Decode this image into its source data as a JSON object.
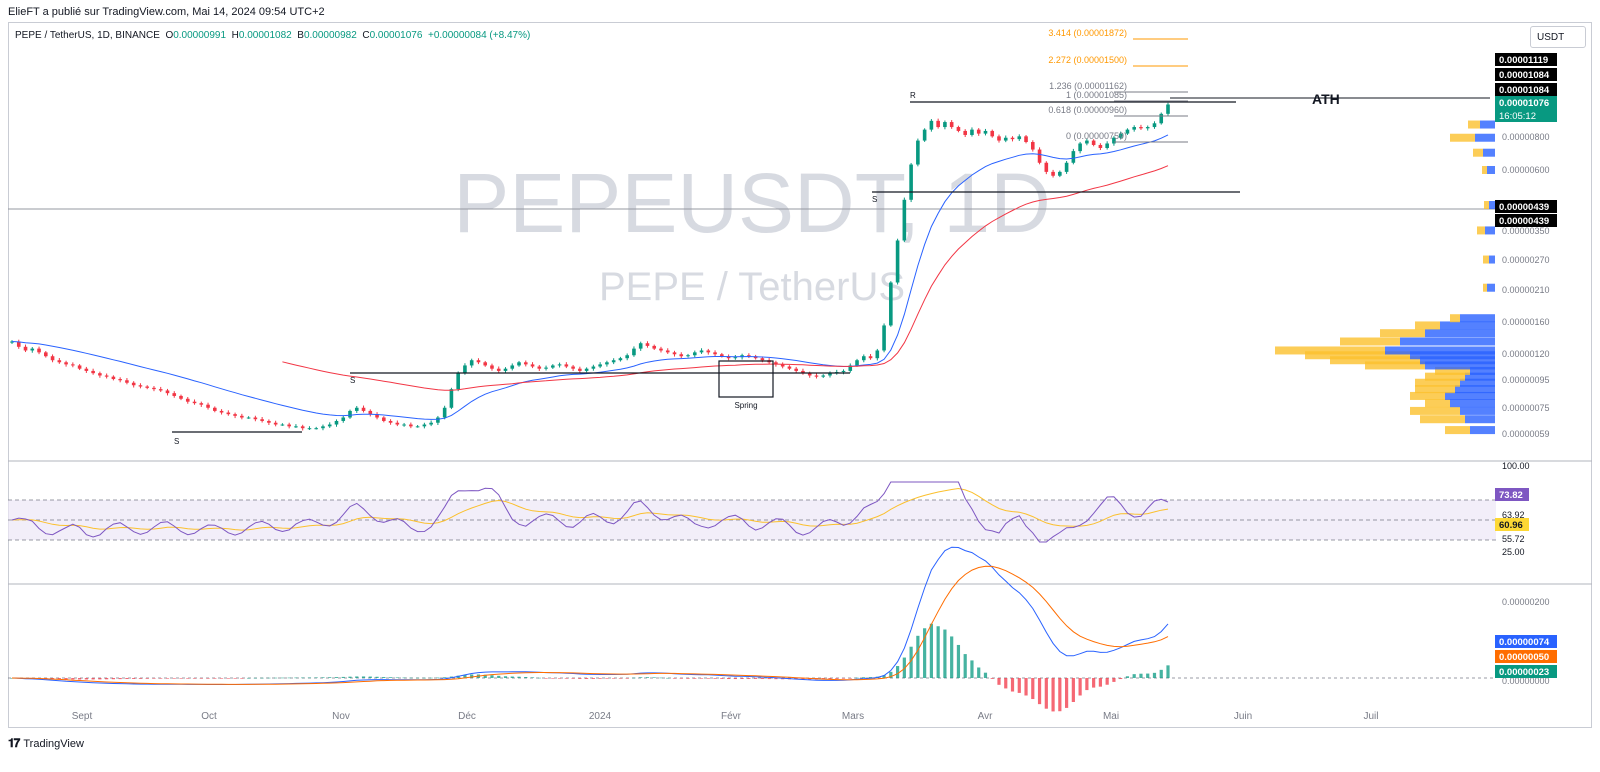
{
  "header": {
    "credit": "ElieFT a publié sur TradingView.com, Mai 14, 2024 09:54 UTC+2",
    "symbol": "PEPE / TetherUS, 1D, BINANCE",
    "o_label": "O",
    "o_value": "0.00000991",
    "h_label": "H",
    "h_value": "0.00001082",
    "b_label": "B",
    "b_value": "0.00000982",
    "c_label": "C",
    "c_value": "0.00001076",
    "change": "+0.00000084 (+8.47%)",
    "unit": "USDT"
  },
  "watermark": {
    "ticker": "PEPEUSDT, 1D",
    "name": "PEPE / TetherUS"
  },
  "footer": {
    "brand": "TradingView"
  },
  "colors": {
    "up": "#089981",
    "down": "#f23645",
    "ema_fast": "#2962ff",
    "ema_slow": "#f23645",
    "rsi": "#7e57c2",
    "rsi_ma": "#fbc02d",
    "macd": "#2962ff",
    "signal": "#ff6d00",
    "vp_up": "#2962ff",
    "vp_dn": "#fbc02d"
  },
  "chart_data": [
    {
      "type": "candlestick",
      "title": "PEPEUSDT, 1D",
      "x_labels": [
        "Sept",
        "Oct",
        "Nov",
        "Déc",
        "2024",
        "Févr",
        "Mars",
        "Avr",
        "Mai",
        "Juin",
        "Juil"
      ],
      "y_ticks": [
        "0.00000059",
        "0.00000075",
        "0.00000095",
        "0.00000120",
        "0.00000160",
        "0.00000210",
        "0.00000270",
        "0.00000350",
        "0.00000600",
        "0.00000800"
      ],
      "price_labels": [
        {
          "value": "0.00001119",
          "style": "black"
        },
        {
          "value": "0.00001084",
          "style": "black"
        },
        {
          "value": "0.00001084",
          "style": "black"
        },
        {
          "value": "0.00001076",
          "style": "green",
          "sub": "16:05:12"
        },
        {
          "value": "0.00000439",
          "style": "black"
        },
        {
          "value": "0.00000439",
          "style": "black"
        }
      ],
      "fib_levels": [
        {
          "label": "3.414 (0.00001872)",
          "color": "#ff9800"
        },
        {
          "label": "2.272 (0.00001500)",
          "color": "#ff9800"
        },
        {
          "label": "1.236 (0.00001162)",
          "color": "#787b86"
        },
        {
          "label": "1 (0.00001085)",
          "color": "#787b86"
        },
        {
          "label": "0.618 (0.00000960)",
          "color": "#787b86"
        },
        {
          "label": "0 (0.00000759)",
          "color": "#787b86"
        }
      ],
      "annotations": [
        "ATH",
        "Spring",
        "S",
        "S",
        "S",
        "R"
      ],
      "series": [
        {
          "kind": "ema_fast"
        },
        {
          "kind": "ema_slow"
        }
      ],
      "closes": [
        1.3,
        1.24,
        1.2,
        1.22,
        1.18,
        1.14,
        1.1,
        1.08,
        1.06,
        1.05,
        1.02,
        1.0,
        0.98,
        0.96,
        0.95,
        0.93,
        0.92,
        0.9,
        0.88,
        0.87,
        0.86,
        0.85,
        0.84,
        0.82,
        0.8,
        0.78,
        0.76,
        0.75,
        0.74,
        0.72,
        0.7,
        0.69,
        0.68,
        0.67,
        0.66,
        0.66,
        0.65,
        0.64,
        0.63,
        0.62,
        0.62,
        0.61,
        0.61,
        0.6,
        0.6,
        0.6,
        0.61,
        0.62,
        0.64,
        0.66,
        0.7,
        0.72,
        0.7,
        0.68,
        0.66,
        0.64,
        0.63,
        0.62,
        0.62,
        0.61,
        0.61,
        0.62,
        0.63,
        0.66,
        0.72,
        0.85,
        0.98,
        1.05,
        1.1,
        1.08,
        1.05,
        1.02,
        1.0,
        1.02,
        1.05,
        1.08,
        1.06,
        1.04,
        1.02,
        1.03,
        1.05,
        1.06,
        1.04,
        1.02,
        1.0,
        1.02,
        1.04,
        1.06,
        1.08,
        1.1,
        1.12,
        1.15,
        1.22,
        1.28,
        1.25,
        1.22,
        1.2,
        1.18,
        1.16,
        1.14,
        1.15,
        1.18,
        1.2,
        1.18,
        1.16,
        1.14,
        1.12,
        1.13,
        1.15,
        1.14,
        1.12,
        1.1,
        1.08,
        1.06,
        1.04,
        1.02,
        1.0,
        0.98,
        0.96,
        0.95,
        0.96,
        0.98,
        0.99,
        1.0,
        1.05,
        1.1,
        1.14,
        1.12,
        1.2,
        1.5,
        2.2,
        3.2,
        4.6,
        6.3,
        7.8,
        8.6,
        9.3,
        8.8,
        9.2,
        8.8,
        8.5,
        8.2,
        8.6,
        8.3,
        8.5,
        8.1,
        7.8,
        8.0,
        7.9,
        8.1,
        7.7,
        7.2,
        6.4,
        5.9,
        5.7,
        5.9,
        6.4,
        7.1,
        7.6,
        7.8,
        7.5,
        7.3,
        7.6,
        8.0,
        8.3,
        8.6,
        8.8,
        8.7,
        8.8,
        9.1,
        9.9,
        10.76
      ],
      "volume_profile": [
        {
          "price": 5.9e-07,
          "up": 25,
          "dn": 25
        },
        {
          "price": 6.5e-07,
          "up": 30,
          "dn": 45
        },
        {
          "price": 7e-07,
          "up": 35,
          "dn": 50
        },
        {
          "price": 7.5e-07,
          "up": 45,
          "dn": 25
        },
        {
          "price": 8e-07,
          "up": 50,
          "dn": 35
        },
        {
          "price": 8.5e-07,
          "up": 40,
          "dn": 40
        },
        {
          "price": 9e-07,
          "up": 35,
          "dn": 45
        },
        {
          "price": 9.5e-07,
          "up": 30,
          "dn": 40
        },
        {
          "price": 1e-06,
          "up": 25,
          "dn": 35
        },
        {
          "price": 1.05e-06,
          "up": 70,
          "dn": 60
        },
        {
          "price": 1.1e-06,
          "up": 75,
          "dn": 90
        },
        {
          "price": 1.15e-06,
          "up": 85,
          "dn": 105
        },
        {
          "price": 1.2e-06,
          "up": 110,
          "dn": 110
        },
        {
          "price": 1.3e-06,
          "up": 95,
          "dn": 60
        },
        {
          "price": 1.4e-06,
          "up": 70,
          "dn": 45
        },
        {
          "price": 1.5e-06,
          "up": 55,
          "dn": 25
        },
        {
          "price": 1.6e-06,
          "up": 35,
          "dn": 10
        },
        {
          "price": 2.1e-06,
          "up": 8,
          "dn": 4
        },
        {
          "price": 2.7e-06,
          "up": 6,
          "dn": 6
        },
        {
          "price": 3.5e-06,
          "up": 10,
          "dn": 8
        },
        {
          "price": 4.39e-06,
          "up": 6,
          "dn": 5
        },
        {
          "price": 6e-06,
          "up": 8,
          "dn": 5
        },
        {
          "price": 7e-06,
          "up": 12,
          "dn": 10
        },
        {
          "price": 8e-06,
          "up": 20,
          "dn": 25
        },
        {
          "price": 9e-06,
          "up": 15,
          "dn": 12
        }
      ]
    },
    {
      "type": "line",
      "name": "RSI",
      "y_ticks": [
        "100.00",
        "63.92",
        "55.72",
        "25.00"
      ],
      "last_labels": [
        {
          "value": "73.82",
          "style": "purple"
        },
        {
          "value": "60.96",
          "style": "yellow"
        }
      ],
      "bands": [
        70,
        50,
        30
      ]
    },
    {
      "type": "bar",
      "name": "MACD",
      "y_ticks": [
        "0.00000200",
        "0.00000000"
      ],
      "last_labels": [
        {
          "value": "0.00000074",
          "style": "blue"
        },
        {
          "value": "0.00000050",
          "style": "orange"
        },
        {
          "value": "0.00000023",
          "style": "teal"
        }
      ]
    }
  ]
}
